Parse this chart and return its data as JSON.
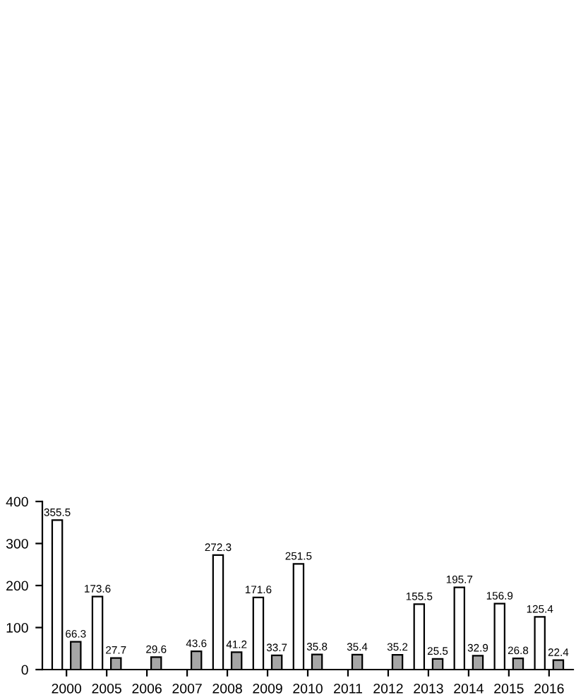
{
  "chart_data": {
    "type": "bar",
    "categories": [
      "2000",
      "2005",
      "2006",
      "2007",
      "2008",
      "2009",
      "2010",
      "2011",
      "2012",
      "2013",
      "2014",
      "2015",
      "2016"
    ],
    "series": [
      {
        "color": "#ffffff",
        "values": [
          355.5,
          173.6,
          null,
          null,
          272.3,
          171.6,
          251.5,
          null,
          null,
          155.5,
          195.7,
          156.9,
          125.4
        ]
      },
      {
        "color": "#a6a6a6",
        "values": [
          66.3,
          27.7,
          29.6,
          43.6,
          41.2,
          33.7,
          35.8,
          35.4,
          35.2,
          25.5,
          32.9,
          26.8,
          22.4
        ]
      }
    ],
    "ylim": [
      0,
      400
    ],
    "yticks": [
      0,
      100,
      200,
      300,
      400
    ],
    "data_labels": true,
    "grid": false,
    "legend": false
  }
}
